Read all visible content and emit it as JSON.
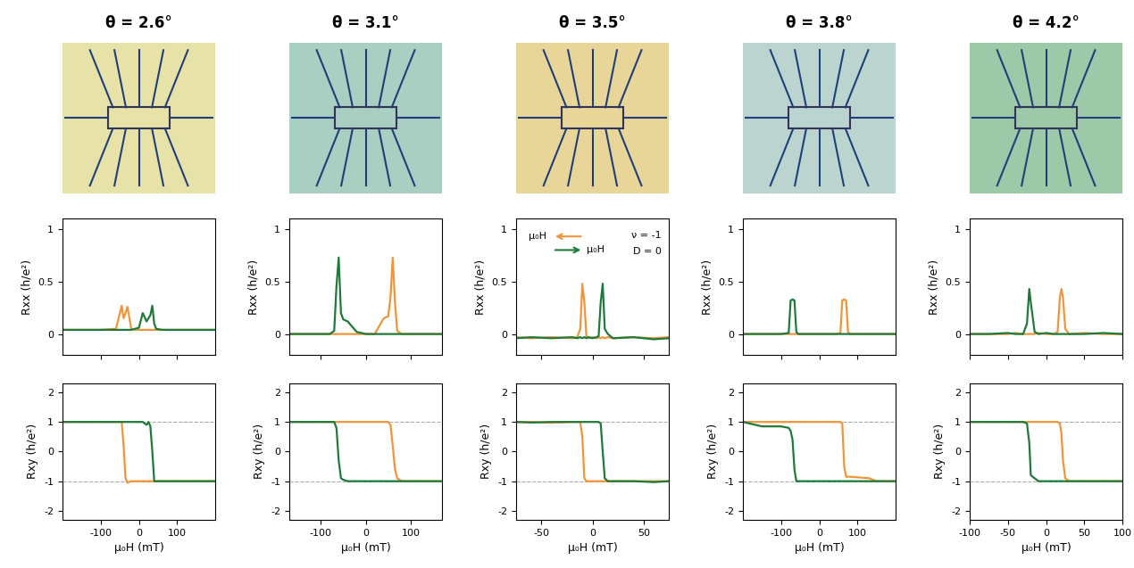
{
  "images": [
    {
      "title": "θ = 2.6°"
    },
    {
      "title": "θ = 3.1°"
    },
    {
      "title": "θ = 3.5°"
    },
    {
      "title": "θ = 3.8°"
    },
    {
      "title": "θ = 4.2°"
    }
  ],
  "chart_data": [
    {
      "type": "line",
      "ylabel": "Rxx (h/e²)",
      "tick_labels": "y",
      "x": [
        -200,
        -150,
        -100,
        -60,
        -45,
        -40,
        -35,
        -30,
        -20,
        -10,
        0,
        10,
        20,
        25,
        30,
        35,
        40,
        45,
        60,
        100,
        150,
        200
      ],
      "series": [
        {
          "color": "#f0953a",
          "values": [
            0.04,
            0.04,
            0.04,
            0.05,
            0.27,
            0.15,
            0.2,
            0.26,
            0.05,
            0.04,
            0.04,
            0.04,
            0.04,
            0.04,
            0.04,
            0.04,
            0.04,
            0.04,
            0.04,
            0.04,
            0.04,
            0.04
          ]
        },
        {
          "color": "#1f7a3a",
          "values": [
            0.04,
            0.04,
            0.04,
            0.04,
            0.04,
            0.04,
            0.04,
            0.04,
            0.04,
            0.05,
            0.06,
            0.2,
            0.12,
            0.15,
            0.18,
            0.27,
            0.1,
            0.05,
            0.04,
            0.04,
            0.04,
            0.04
          ]
        }
      ],
      "xlim": [
        -200,
        200
      ],
      "xticks": [
        -100,
        0,
        100
      ],
      "ylim": [
        -0.2,
        1.1
      ],
      "yticks": [
        0,
        0.5,
        1
      ]
    },
    {
      "type": "line",
      "ylabel": "Rxx (h/e²)",
      "tick_labels": "y",
      "x": [
        -170,
        -120,
        -80,
        -70,
        -65,
        -60,
        -55,
        -50,
        -40,
        -20,
        0,
        20,
        40,
        50,
        55,
        60,
        65,
        70,
        80,
        120,
        170
      ],
      "series": [
        {
          "color": "#f0953a",
          "values": [
            0.0,
            0.0,
            0.0,
            0.0,
            0.0,
            0.0,
            0.0,
            0.0,
            0.0,
            0.0,
            0.0,
            0.0,
            0.15,
            0.17,
            0.35,
            0.73,
            0.3,
            0.03,
            0.0,
            0.0,
            0.0
          ]
        },
        {
          "color": "#1f7a3a",
          "values": [
            0.0,
            0.0,
            0.0,
            0.03,
            0.45,
            0.73,
            0.2,
            0.14,
            0.12,
            0.02,
            0.0,
            0.0,
            0.0,
            0.0,
            0.0,
            0.0,
            0.0,
            0.0,
            0.0,
            0.0,
            0.0
          ]
        }
      ],
      "xlim": [
        -170,
        170
      ],
      "xticks": [
        -100,
        0,
        100
      ],
      "ylim": [
        -0.2,
        1.1
      ],
      "yticks": [
        0,
        0.5,
        1
      ]
    },
    {
      "type": "line",
      "ylabel": "Rxx (h/e²)",
      "tick_labels": "y",
      "annotations": [
        "μ₀H",
        "μ₀H",
        "ν = -1",
        "D = 0"
      ],
      "x": [
        -75,
        -60,
        -40,
        -20,
        -15,
        -12,
        -10,
        -8,
        -6,
        -4,
        0,
        4,
        6,
        8,
        10,
        12,
        15,
        20,
        40,
        60,
        75
      ],
      "series": [
        {
          "color": "#f0953a",
          "values": [
            -0.03,
            -0.04,
            -0.03,
            -0.04,
            -0.03,
            0.05,
            0.48,
            0.3,
            -0.02,
            -0.04,
            -0.03,
            -0.04,
            -0.03,
            -0.04,
            -0.03,
            -0.04,
            -0.03,
            -0.04,
            -0.03,
            -0.04,
            -0.03
          ]
        },
        {
          "color": "#1f7a3a",
          "values": [
            -0.04,
            -0.03,
            -0.04,
            -0.03,
            -0.04,
            -0.03,
            -0.04,
            -0.03,
            -0.04,
            -0.03,
            -0.04,
            -0.03,
            -0.02,
            0.3,
            0.48,
            0.05,
            0.0,
            -0.04,
            -0.03,
            -0.05,
            -0.04
          ]
        }
      ],
      "xlim": [
        -75,
        75
      ],
      "xticks": [
        -50,
        0,
        50
      ],
      "ylim": [
        -0.2,
        1.1
      ],
      "yticks": [
        0,
        0.5,
        1
      ]
    },
    {
      "type": "line",
      "ylabel": "Rxx (h/e²)",
      "tick_labels": "y",
      "x": [
        -200,
        -150,
        -100,
        -80,
        -75,
        -70,
        -65,
        -60,
        -55,
        -40,
        0,
        40,
        55,
        60,
        65,
        70,
        75,
        80,
        100,
        130,
        150,
        200
      ],
      "series": [
        {
          "color": "#f0953a",
          "values": [
            0.0,
            0.0,
            0.0,
            0.0,
            0.0,
            0.0,
            0.0,
            0.0,
            0.0,
            0.0,
            0.0,
            0.0,
            0.01,
            0.32,
            0.33,
            0.32,
            0.02,
            0.0,
            0.0,
            0.0,
            0.0,
            0.0
          ]
        },
        {
          "color": "#1f7a3a",
          "values": [
            0.0,
            0.0,
            0.0,
            0.01,
            0.32,
            0.33,
            0.32,
            0.02,
            0.0,
            0.0,
            0.0,
            0.0,
            0.0,
            0.0,
            0.0,
            0.0,
            0.0,
            0.0,
            0.0,
            0.0,
            0.0,
            0.0
          ]
        }
      ],
      "xlim": [
        -200,
        200
      ],
      "xticks": [
        -100,
        0,
        100
      ],
      "ylim": [
        -0.2,
        1.1
      ],
      "yticks": [
        0,
        0.5,
        1
      ]
    },
    {
      "type": "line",
      "ylabel": "Rxx (h/e²)",
      "tick_labels": "y",
      "x": [
        -100,
        -75,
        -50,
        -40,
        -30,
        -25,
        -22,
        -20,
        -15,
        -10,
        0,
        10,
        15,
        18,
        20,
        22,
        25,
        30,
        50,
        75,
        100
      ],
      "series": [
        {
          "color": "#f0953a",
          "values": [
            0.0,
            0.0,
            0.0,
            0.01,
            0.0,
            0.0,
            0.0,
            0.0,
            0.0,
            0.01,
            0.0,
            0.0,
            0.02,
            0.35,
            0.43,
            0.35,
            0.05,
            0.0,
            0.01,
            0.0,
            0.0
          ]
        },
        {
          "color": "#1f7a3a",
          "values": [
            0.0,
            0.0,
            0.01,
            0.0,
            0.0,
            0.1,
            0.43,
            0.3,
            0.02,
            0.0,
            0.01,
            0.0,
            0.0,
            0.0,
            0.0,
            0.0,
            0.0,
            0.0,
            0.0,
            0.01,
            0.0
          ]
        }
      ],
      "xlim": [
        -100,
        100
      ],
      "xticks": [
        -100,
        -50,
        0,
        50,
        100
      ],
      "ylim": [
        -0.2,
        1.1
      ],
      "yticks": [
        0,
        0.5,
        1
      ]
    },
    {
      "type": "line",
      "xlabel": "μ₀H (mT)",
      "ylabel": "Rxy (h/e²)",
      "reference_lines": [
        -1,
        1
      ],
      "x": [
        -200,
        -150,
        -100,
        -60,
        -45,
        -40,
        -35,
        -30,
        -20,
        -10,
        0,
        10,
        20,
        25,
        30,
        35,
        40,
        45,
        60,
        100,
        150,
        200
      ],
      "series": [
        {
          "color": "#f0953a",
          "values": [
            1,
            1,
            1,
            1,
            1,
            0.2,
            -0.9,
            -1.05,
            -1,
            -1,
            -1,
            -1,
            -1,
            -1,
            -1,
            -1,
            -1,
            -1,
            -1,
            -1,
            -1,
            -1
          ]
        },
        {
          "color": "#1f7a3a",
          "values": [
            1,
            1,
            1,
            1,
            1,
            1,
            1,
            1,
            1,
            1,
            1,
            1,
            0.9,
            1,
            0.85,
            0.0,
            -1,
            -1,
            -1,
            -1,
            -1,
            -1
          ]
        }
      ],
      "xlim": [
        -200,
        200
      ],
      "xticks": [
        -100,
        0,
        100
      ],
      "ylim": [
        -2.3,
        2.3
      ],
      "yticks": [
        -2,
        -1,
        0,
        1,
        2
      ]
    },
    {
      "type": "line",
      "xlabel": "μ₀H (mT)",
      "ylabel": "Rxy (h/e²)",
      "reference_lines": [
        -1,
        1
      ],
      "x": [
        -170,
        -120,
        -80,
        -70,
        -65,
        -60,
        -55,
        -50,
        -40,
        -20,
        0,
        20,
        40,
        50,
        55,
        60,
        65,
        70,
        80,
        120,
        170
      ],
      "series": [
        {
          "color": "#f0953a",
          "values": [
            1,
            1,
            1,
            1,
            1,
            1,
            1,
            1,
            1,
            1,
            1,
            1,
            1,
            1,
            0.9,
            0.2,
            -0.6,
            -0.9,
            -1,
            -1,
            -1
          ]
        },
        {
          "color": "#1f7a3a",
          "values": [
            1,
            1,
            1,
            1,
            0.8,
            -0.3,
            -0.9,
            -0.95,
            -1,
            -1,
            -1,
            -1,
            -1,
            -1,
            -1,
            -1,
            -1,
            -1,
            -1,
            -1,
            -1
          ]
        }
      ],
      "xlim": [
        -170,
        170
      ],
      "xticks": [
        -100,
        0,
        100
      ],
      "ylim": [
        -2.3,
        2.3
      ],
      "yticks": [
        -2,
        -1,
        0,
        1,
        2
      ]
    },
    {
      "type": "line",
      "xlabel": "μ₀H (mT)",
      "ylabel": "Rxy (h/e²)",
      "reference_lines": [
        -1,
        1
      ],
      "x": [
        -75,
        -60,
        -40,
        -20,
        -15,
        -12,
        -10,
        -8,
        -6,
        -4,
        0,
        4,
        6,
        8,
        10,
        12,
        15,
        20,
        40,
        60,
        75
      ],
      "series": [
        {
          "color": "#f0953a",
          "values": [
            1,
            1,
            0.97,
            1,
            1,
            1,
            0.5,
            -0.9,
            -1,
            -1,
            -1,
            -1,
            -1,
            -1,
            -1,
            -1,
            -1,
            -1,
            -1,
            -1,
            -1
          ]
        },
        {
          "color": "#1f7a3a",
          "values": [
            1,
            0.98,
            1,
            1,
            1,
            1,
            1,
            1,
            1,
            1,
            1,
            1,
            1,
            0.95,
            0.0,
            -0.9,
            -1,
            -1,
            -1,
            -1.03,
            -1
          ]
        }
      ],
      "xlim": [
        -75,
        75
      ],
      "xticks": [
        -50,
        0,
        50
      ],
      "ylim": [
        -2.3,
        2.3
      ],
      "yticks": [
        -2,
        -1,
        0,
        1,
        2
      ]
    },
    {
      "type": "line",
      "xlabel": "μ₀H (mT)",
      "ylabel": "Rxy (h/e²)",
      "reference_lines": [
        -1,
        1
      ],
      "x": [
        -200,
        -150,
        -100,
        -80,
        -75,
        -70,
        -65,
        -60,
        -55,
        -40,
        0,
        40,
        55,
        60,
        65,
        70,
        75,
        80,
        100,
        130,
        150,
        200
      ],
      "series": [
        {
          "color": "#f0953a",
          "values": [
            1,
            1,
            1,
            1,
            1,
            1,
            1,
            1,
            1,
            1,
            1,
            1,
            1,
            0.95,
            -0.5,
            -0.85,
            -0.85,
            -0.85,
            -0.87,
            -0.9,
            -1,
            -1
          ]
        },
        {
          "color": "#1f7a3a",
          "values": [
            1,
            0.85,
            0.85,
            0.8,
            0.7,
            0.4,
            -0.6,
            -1,
            -1,
            -1,
            -1,
            -1,
            -1,
            -1,
            -1,
            -1,
            -1,
            -1,
            -1,
            -1,
            -1,
            -1
          ]
        }
      ],
      "xlim": [
        -200,
        200
      ],
      "xticks": [
        -100,
        0,
        100
      ],
      "ylim": [
        -2.3,
        2.3
      ],
      "yticks": [
        -2,
        -1,
        0,
        1,
        2
      ]
    },
    {
      "type": "line",
      "xlabel": "μ₀H (mT)",
      "ylabel": "Rxy (h/e²)",
      "reference_lines": [
        -1,
        1
      ],
      "x": [
        -100,
        -75,
        -50,
        -40,
        -30,
        -25,
        -22,
        -20,
        -15,
        -10,
        0,
        10,
        15,
        18,
        20,
        22,
        25,
        30,
        50,
        75,
        100
      ],
      "series": [
        {
          "color": "#f0953a",
          "values": [
            1,
            1,
            1,
            1,
            1,
            1,
            1,
            1,
            1,
            1,
            1,
            1,
            1,
            0.95,
            0.6,
            -0.3,
            -0.9,
            -1,
            -1,
            -1,
            -1
          ]
        },
        {
          "color": "#1f7a3a",
          "values": [
            1,
            1,
            1,
            1,
            1,
            0.95,
            0.3,
            -0.8,
            -0.9,
            -1,
            -1,
            -1,
            -1,
            -1,
            -1,
            -1,
            -1,
            -1,
            -1,
            -1,
            -1
          ]
        }
      ],
      "xlim": [
        -100,
        100
      ],
      "xticks": [
        -100,
        -50,
        0,
        50,
        100
      ],
      "ylim": [
        -2.3,
        2.3
      ],
      "yticks": [
        -2,
        -1,
        0,
        1,
        2
      ]
    }
  ]
}
